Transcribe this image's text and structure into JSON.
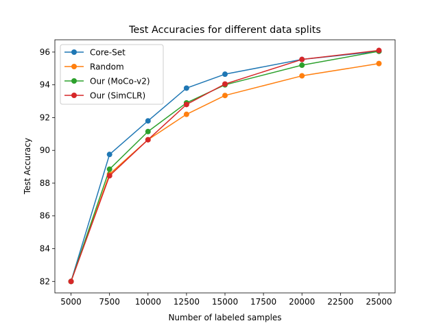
{
  "chart_data": {
    "type": "line",
    "title": "Test Accuracies for different data splits",
    "xlabel": "Number of labeled samples",
    "ylabel": "Test Accuracy",
    "xlim": [
      3950,
      26050
    ],
    "ylim": [
      81.3,
      96.75
    ],
    "xticks": [
      5000,
      7500,
      10000,
      12500,
      15000,
      17500,
      20000,
      22500,
      25000
    ],
    "yticks": [
      82,
      84,
      86,
      88,
      90,
      92,
      94,
      96
    ],
    "grid": false,
    "legend_position": "top-left",
    "x": [
      5000,
      7500,
      10000,
      12500,
      15000,
      20000,
      25000
    ],
    "series": [
      {
        "name": "Core-Set",
        "color": "#1f77b4",
        "values": [
          82.0,
          89.75,
          91.8,
          93.8,
          94.65,
          95.55,
          96.05
        ]
      },
      {
        "name": "Random",
        "color": "#ff7f0e",
        "values": [
          82.0,
          88.55,
          90.65,
          92.2,
          93.35,
          94.55,
          95.3
        ]
      },
      {
        "name": "Our (MoCo-v2)",
        "color": "#2ca02c",
        "values": [
          82.0,
          88.85,
          91.15,
          92.9,
          94.0,
          95.2,
          96.05
        ]
      },
      {
        "name": "Our (SimCLR)",
        "color": "#d62728",
        "values": [
          82.0,
          88.45,
          90.65,
          92.8,
          94.05,
          95.55,
          96.1
        ]
      }
    ]
  }
}
